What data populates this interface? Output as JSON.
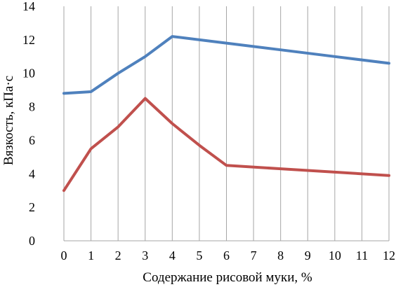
{
  "chart_data": {
    "type": "line",
    "title": "",
    "xlabel": "Содержание рисовой муки, %",
    "ylabel": "Вязкость, кПа·с",
    "categories": [
      0,
      1,
      2,
      3,
      4,
      5,
      6,
      7,
      8,
      9,
      10,
      11,
      12
    ],
    "x_ticks": [
      "0",
      "1",
      "2",
      "3",
      "4",
      "5",
      "6",
      "7",
      "8",
      "9",
      "10",
      "11",
      "12"
    ],
    "y_ticks": [
      "0",
      "2",
      "4",
      "6",
      "8",
      "10",
      "12",
      "14"
    ],
    "ylim": [
      0,
      14
    ],
    "grid": "vertical",
    "legend": "none",
    "series": [
      {
        "color": "#4f81bd",
        "x": [
          0,
          1,
          2,
          3,
          4,
          6,
          8,
          10,
          12
        ],
        "values": [
          8.8,
          8.9,
          10.0,
          11.0,
          12.2,
          11.8,
          11.4,
          11.0,
          10.6
        ]
      },
      {
        "color": "#c0504d",
        "x": [
          0,
          1,
          2,
          3,
          4,
          5,
          6,
          8,
          10,
          12
        ],
        "values": [
          3.0,
          5.5,
          6.8,
          8.5,
          7.0,
          5.7,
          4.5,
          4.3,
          4.1,
          3.9
        ]
      }
    ],
    "colors": {
      "grid": "#a6a6a6",
      "axis": "#a6a6a6"
    }
  }
}
